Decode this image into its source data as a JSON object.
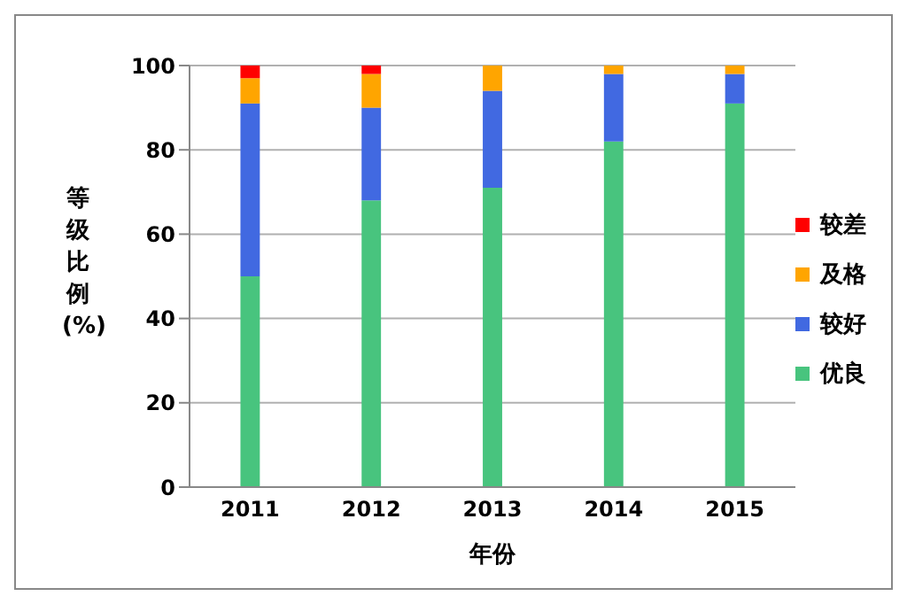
{
  "chart_data": {
    "type": "bar",
    "stacked": true,
    "xlabel": "年份",
    "ylabel": "等级比例(%)",
    "categories": [
      "2011",
      "2012",
      "2013",
      "2014",
      "2015"
    ],
    "series": [
      {
        "name": "优良",
        "color": "#48c47e",
        "values": [
          50,
          68,
          71,
          82,
          91
        ]
      },
      {
        "name": "较好",
        "color": "#4169e1",
        "values": [
          41,
          22,
          23,
          16,
          7
        ]
      },
      {
        "name": "及格",
        "color": "#ffa500",
        "values": [
          6,
          8,
          6,
          2,
          2
        ]
      },
      {
        "name": "较差",
        "color": "#ff0000",
        "values": [
          3,
          2,
          0,
          0,
          0
        ]
      }
    ],
    "ylim": [
      0,
      100
    ],
    "yticks": [
      0,
      20,
      40,
      60,
      80,
      100
    ],
    "grid": "y",
    "legend": "right"
  }
}
